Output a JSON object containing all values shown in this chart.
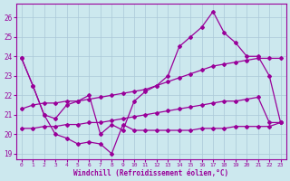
{
  "xlabel": "Windchill (Refroidissement éolien,°C)",
  "xlim": [
    -0.5,
    23.5
  ],
  "ylim": [
    18.7,
    26.7
  ],
  "yticks": [
    19,
    20,
    21,
    22,
    23,
    24,
    25,
    26
  ],
  "xticks": [
    0,
    1,
    2,
    3,
    4,
    5,
    6,
    7,
    8,
    9,
    10,
    11,
    12,
    13,
    14,
    15,
    16,
    17,
    18,
    19,
    20,
    21,
    22,
    23
  ],
  "bg_color": "#cce8ee",
  "grid_color": "#aac8d8",
  "line_color": "#990099",
  "series1_x": [
    0,
    1,
    2,
    3,
    4,
    5,
    6,
    7,
    8,
    9,
    10,
    11,
    12,
    13,
    14,
    15,
    16,
    17,
    18,
    19,
    20,
    21,
    22,
    23
  ],
  "series1_y": [
    23.9,
    22.5,
    21.0,
    20.8,
    21.5,
    21.7,
    22.0,
    20.0,
    20.5,
    20.2,
    21.7,
    22.2,
    22.5,
    23.0,
    24.5,
    25.0,
    25.5,
    26.3,
    25.2,
    24.7,
    24.0,
    24.0,
    23.0,
    20.6
  ],
  "series2_x": [
    0,
    1,
    2,
    3,
    4,
    5,
    6,
    7,
    8,
    9,
    10,
    11,
    12,
    13,
    14,
    15,
    16,
    17,
    18,
    19,
    20,
    21,
    22,
    23
  ],
  "series2_y": [
    23.9,
    22.5,
    21.0,
    20.0,
    19.8,
    19.5,
    19.6,
    19.5,
    19.0,
    20.5,
    20.2,
    20.2,
    20.2,
    20.2,
    20.2,
    20.2,
    20.3,
    20.3,
    20.3,
    20.4,
    20.4,
    20.4,
    20.4,
    20.6
  ],
  "series3_x": [
    0,
    1,
    2,
    3,
    4,
    5,
    6,
    7,
    8,
    9,
    10,
    11,
    12,
    13,
    14,
    15,
    16,
    17,
    18,
    19,
    20,
    21,
    22,
    23
  ],
  "series3_y": [
    21.3,
    21.5,
    21.6,
    21.6,
    21.7,
    21.7,
    21.8,
    21.9,
    22.0,
    22.1,
    22.2,
    22.3,
    22.5,
    22.7,
    22.9,
    23.1,
    23.3,
    23.5,
    23.6,
    23.7,
    23.8,
    23.9,
    23.9,
    23.9
  ],
  "series4_x": [
    0,
    1,
    2,
    3,
    4,
    5,
    6,
    7,
    8,
    9,
    10,
    11,
    12,
    13,
    14,
    15,
    16,
    17,
    18,
    19,
    20,
    21,
    22,
    23
  ],
  "series4_y": [
    20.3,
    20.3,
    20.4,
    20.4,
    20.5,
    20.5,
    20.6,
    20.6,
    20.7,
    20.8,
    20.9,
    21.0,
    21.1,
    21.2,
    21.3,
    21.4,
    21.5,
    21.6,
    21.7,
    21.7,
    21.8,
    21.9,
    20.6,
    20.6
  ]
}
